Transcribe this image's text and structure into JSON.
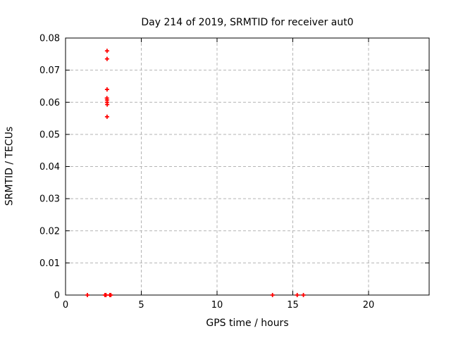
{
  "window": {
    "background": "#ffffff"
  },
  "chart_data": {
    "type": "scatter",
    "title": "Day 214 of 2019, SRMTID for receiver aut0",
    "xlabel": "GPS time / hours",
    "ylabel": "SRMTID / TECUs",
    "xlim": [
      0,
      24
    ],
    "ylim": [
      0,
      0.08
    ],
    "xticks": {
      "values": [
        0,
        5,
        10,
        15,
        20
      ],
      "labels": [
        "0",
        "5",
        "10",
        "15",
        "20"
      ]
    },
    "yticks": {
      "values": [
        0,
        0.01,
        0.02,
        0.03,
        0.04,
        0.05,
        0.06,
        0.07,
        0.08
      ],
      "labels": [
        "0",
        "0.01",
        "0.02",
        "0.03",
        "0.04",
        "0.05",
        "0.06",
        "0.07",
        "0.08"
      ]
    },
    "grid": true,
    "legend_position": "none",
    "marker": "plus",
    "marker_color": "#ff0000",
    "grid_color": "#b4b4b4",
    "axis_color": "#000000",
    "series": [
      {
        "name": "SRMTID",
        "points": [
          [
            2.74,
            0.076
          ],
          [
            2.74,
            0.0735
          ],
          [
            2.74,
            0.064
          ],
          [
            2.73,
            0.0613
          ],
          [
            2.74,
            0.0607
          ],
          [
            2.74,
            0.06
          ],
          [
            2.75,
            0.0593
          ],
          [
            2.74,
            0.0555
          ],
          [
            1.44,
            0.0
          ],
          [
            2.6,
            0.0
          ],
          [
            2.67,
            0.0
          ],
          [
            2.92,
            0.0
          ],
          [
            2.99,
            0.0
          ],
          [
            13.66,
            0.0
          ],
          [
            15.29,
            0.0
          ],
          [
            15.7,
            0.0
          ]
        ]
      }
    ]
  }
}
